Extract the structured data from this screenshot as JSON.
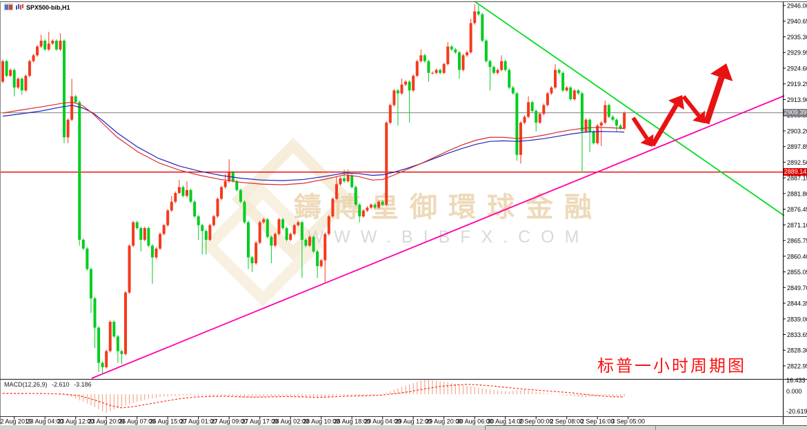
{
  "window": {
    "title": "SPX500-bib,H1"
  },
  "title_icons": [
    "window-split-icon",
    "mini-candlestick-icon"
  ],
  "watermark": {
    "brand_cn": "鑄博皇御環球金融",
    "brand_url": "WWW.BIBFX.COM"
  },
  "annotation": {
    "text": "标普一小时周期图",
    "color": "#fb1111"
  },
  "indicator": {
    "name": "MACD(12,26,9)",
    "value_macd": "-2.610",
    "value_signal": "-3.186"
  },
  "price_axis": {
    "current_price": "2909.39",
    "hline_price": "2889.14",
    "ticks": [
      "2946.00",
      "2940.65",
      "2935.30",
      "2929.95",
      "2924.60",
      "2919.25",
      "2913.90",
      "2908.55",
      "2903.20",
      "2897.85",
      "2892.50",
      "2887.15",
      "2881.80",
      "2876.45",
      "2871.10",
      "2865.75",
      "2860.40",
      "2855.05",
      "2849.70",
      "2844.35",
      "2839.00",
      "2833.65",
      "2828.30",
      "2822.95"
    ]
  },
  "macd_axis": {
    "max": "16.433",
    "zero": "0.000",
    "min": "-20.619"
  },
  "time_axis": {
    "labels": [
      "22 Aug 2019",
      "23 Aug 04:00",
      "23 Aug 12:00",
      "23 Aug 20:00",
      "26 Aug 07:00",
      "26 Aug 15:00",
      "27 Aug 01:00",
      "27 Aug 09:00",
      "27 Aug 17:00",
      "28 Aug 02:00",
      "28 Aug 10:00",
      "28 Aug 18:00",
      "29 Aug 04:00",
      "29 Aug 12:00",
      "29 Aug 20:00",
      "30 Aug 06:00",
      "30 Aug 14:00",
      "2 Sep 00:00",
      "2 Sep 08:00",
      "2 Sep 16:00",
      "3 Sep 05:00"
    ]
  },
  "colors": {
    "bull_body": "#f5391c",
    "bear_body": "#00cd1f",
    "ma_fast": "#d92b2b",
    "ma_slow": "#2424bb",
    "trend_green": "#00dd22",
    "trend_magenta": "#ff00aa",
    "hline_red": "#e00000",
    "cur_price_line": "#808080",
    "macd_hist": "#f2a184",
    "macd_signal": "#ff2d16",
    "arrow_red": "#e81212"
  },
  "chart_data": {
    "type": "candlestick",
    "symbol": "SPX500-bib",
    "timeframe": "H1",
    "title": "SPX500-bib,H1",
    "ylim": [
      2817.5,
      2948.0
    ],
    "tick_step": 5.35,
    "bars_per_time_label": 8,
    "first_open": 2920,
    "closes": [
      2927,
      2922,
      2924,
      2918,
      2921,
      2917,
      2922,
      2927,
      2929,
      2932,
      2934,
      2931,
      2933,
      2934,
      2931,
      2934,
      2901,
      2907,
      2915,
      2913,
      2866,
      2863,
      2856,
      2846,
      2836,
      2824,
      2822.5,
      2828,
      2838,
      2833,
      2828,
      2827,
      2848,
      2864,
      2872,
      2870,
      2866,
      2870,
      2864,
      2860,
      2863,
      2868,
      2871,
      2876,
      2879,
      2882,
      2884,
      2881,
      2883,
      2879,
      2874,
      2871,
      2869,
      2866,
      2871,
      2874,
      2880,
      2884,
      2886,
      2889,
      2886,
      2883,
      2879,
      2872,
      2860,
      2858,
      2865,
      2872,
      2873,
      2867,
      2864,
      2868,
      2873,
      2870,
      2866,
      2868,
      2871,
      2872,
      2866,
      2864,
      2867,
      2862,
      2857,
      2859,
      2868,
      2874,
      2880,
      2885,
      2887,
      2886,
      2888,
      2884,
      2878,
      2874,
      2876,
      2877,
      2878,
      2877,
      2879,
      2878,
      2906,
      2912,
      2917,
      2916,
      2919,
      2920,
      2917,
      2922,
      2927,
      2929,
      2927,
      2923,
      2923,
      2924,
      2923,
      2926,
      2932,
      2931,
      2930,
      2924,
      2929,
      2930,
      2940,
      2944,
      2943,
      2934,
      2927,
      2925,
      2923,
      2924,
      2927,
      2924,
      2918,
      2916,
      2895,
      2906,
      2908,
      2913,
      2910,
      2906,
      2909,
      2912,
      2916,
      2918,
      2924,
      2923,
      2917,
      2918,
      2914,
      2917,
      2916,
      2903,
      2907,
      2903,
      2899,
      2905,
      2906,
      2912,
      2908,
      2907,
      2905,
      2904,
      2909.39
    ],
    "wick_high_overrides": {
      "10": 2936,
      "12": 2937,
      "15": 2936.5,
      "18": 2921,
      "44": 2881,
      "46": 2886.5,
      "48": 2886,
      "58": 2888.5,
      "59": 2893.5,
      "87": 2887.5,
      "89": 2890,
      "90": 2890,
      "104": 2921,
      "109": 2931,
      "116": 2933.5,
      "122": 2941.5,
      "123": 2946.5,
      "124": 2946,
      "130": 2929,
      "137": 2915,
      "144": 2926,
      "157": 2913.5
    },
    "wick_low_overrides": {
      "3": 2915,
      "5": 2915.5,
      "16": 2899,
      "17": 2899,
      "20": 2864,
      "23": 2841,
      "24": 2829,
      "25": 2820.8,
      "26": 2820,
      "30": 2824,
      "31": 2823.5,
      "36": 2862,
      "39": 2851,
      "51": 2866,
      "52": 2861,
      "53": 2861,
      "64": 2856,
      "65": 2855,
      "70": 2858,
      "78": 2853,
      "82": 2853,
      "84": 2851.5,
      "93": 2872,
      "103": 2905,
      "106": 2906,
      "111": 2920,
      "119": 2921,
      "127": 2917,
      "134": 2893,
      "135": 2892,
      "139": 2903,
      "151": 2889,
      "153": 2896,
      "156": 2898,
      "160": 2903
    },
    "ma_fast_path": [
      [
        4,
        2909.3
      ],
      [
        30,
        2910.3
      ],
      [
        60,
        2911.4
      ],
      [
        90,
        2912.6
      ],
      [
        105,
        2913
      ],
      [
        120,
        2911.8
      ],
      [
        135,
        2909
      ],
      [
        150,
        2905.5
      ],
      [
        170,
        2901
      ],
      [
        200,
        2896
      ],
      [
        230,
        2892.3
      ],
      [
        260,
        2889.8
      ],
      [
        290,
        2888
      ],
      [
        320,
        2886.6
      ],
      [
        350,
        2885.6
      ],
      [
        380,
        2885
      ],
      [
        410,
        2884.8
      ],
      [
        440,
        2885.3
      ],
      [
        470,
        2886.6
      ],
      [
        500,
        2888.2
      ],
      [
        520,
        2887.6
      ],
      [
        540,
        2886.4
      ],
      [
        555,
        2886.6
      ],
      [
        570,
        2888
      ],
      [
        590,
        2890
      ],
      [
        610,
        2892
      ],
      [
        630,
        2894.2
      ],
      [
        650,
        2896.4
      ],
      [
        670,
        2898.4
      ],
      [
        690,
        2900
      ],
      [
        710,
        2901
      ],
      [
        730,
        2901
      ],
      [
        750,
        2900.6
      ],
      [
        770,
        2901
      ],
      [
        790,
        2901.8
      ],
      [
        810,
        2902.8
      ],
      [
        830,
        2903.6
      ],
      [
        850,
        2904.2
      ],
      [
        870,
        2904.4
      ],
      [
        890,
        2904.2
      ],
      [
        905,
        2904
      ]
    ],
    "ma_slow_path": [
      [
        4,
        2908.2
      ],
      [
        30,
        2909
      ],
      [
        60,
        2910
      ],
      [
        90,
        2911.4
      ],
      [
        105,
        2911.9
      ],
      [
        120,
        2911
      ],
      [
        135,
        2909.3
      ],
      [
        150,
        2906.5
      ],
      [
        170,
        2902.5
      ],
      [
        200,
        2897.6
      ],
      [
        230,
        2893.8
      ],
      [
        260,
        2891.2
      ],
      [
        290,
        2889.4
      ],
      [
        320,
        2888
      ],
      [
        350,
        2887
      ],
      [
        380,
        2886.4
      ],
      [
        410,
        2886.2
      ],
      [
        440,
        2886.6
      ],
      [
        470,
        2887.6
      ],
      [
        500,
        2888.8
      ],
      [
        520,
        2888.6
      ],
      [
        540,
        2888
      ],
      [
        555,
        2888.2
      ],
      [
        570,
        2889
      ],
      [
        590,
        2890.4
      ],
      [
        610,
        2892
      ],
      [
        630,
        2893.8
      ],
      [
        650,
        2895.6
      ],
      [
        670,
        2897.2
      ],
      [
        690,
        2898.6
      ],
      [
        710,
        2899.6
      ],
      [
        730,
        2899.8
      ],
      [
        750,
        2899.6
      ],
      [
        770,
        2900
      ],
      [
        790,
        2900.6
      ],
      [
        810,
        2901.4
      ],
      [
        830,
        2902.2
      ],
      [
        850,
        2902.8
      ],
      [
        870,
        2903
      ],
      [
        890,
        2902.9
      ],
      [
        905,
        2902.8
      ]
    ],
    "hline_price": 2889.14,
    "current_price": 2909.39,
    "trendlines": [
      {
        "name": "descending-resistance",
        "color": "#00dd22",
        "from": [
          688,
          2
        ],
        "to": [
          1137,
          313
        ]
      },
      {
        "name": "ascending-support",
        "color": "#ff00aa",
        "from": [
          133,
          549
        ],
        "to": [
          1137,
          139
        ]
      }
    ],
    "arrows": [
      {
        "from": [
          918,
          171
        ],
        "to": [
          946,
          213
        ],
        "w": 6
      },
      {
        "from": [
          946,
          211
        ],
        "to": [
          989,
          138
        ],
        "w": 7
      },
      {
        "from": [
          991,
          140
        ],
        "to": [
          1022,
          179
        ],
        "w": 6
      },
      {
        "from": [
          1024,
          179
        ],
        "to": [
          1053,
          92
        ],
        "w": 9
      }
    ],
    "macd": {
      "values_label": [
        -2.61,
        -3.186
      ],
      "hist_waypoints": [
        [
          0,
          1.2
        ],
        [
          6,
          0.8
        ],
        [
          10,
          1.4
        ],
        [
          14,
          0.2
        ],
        [
          16,
          -1.5
        ],
        [
          18,
          -3
        ],
        [
          20,
          -7
        ],
        [
          22,
          -10.5
        ],
        [
          24,
          -14.5
        ],
        [
          26,
          -19
        ],
        [
          27,
          -20.6
        ],
        [
          29,
          -17
        ],
        [
          31,
          -14
        ],
        [
          33,
          -11
        ],
        [
          35,
          -8.5
        ],
        [
          38,
          -5.5
        ],
        [
          42,
          -3
        ],
        [
          46,
          -1.8
        ],
        [
          50,
          -1.2
        ],
        [
          54,
          -2.2
        ],
        [
          58,
          -1.6
        ],
        [
          61,
          -3
        ],
        [
          63,
          -4.2
        ],
        [
          66,
          -3.6
        ],
        [
          70,
          -2.8
        ],
        [
          74,
          -2.2
        ],
        [
          78,
          -3.2
        ],
        [
          82,
          -4.4
        ],
        [
          85,
          -3.2
        ],
        [
          88,
          -1.2
        ],
        [
          92,
          -2.4
        ],
        [
          96,
          -1.6
        ],
        [
          99,
          -0.5
        ],
        [
          100,
          1.8
        ],
        [
          102,
          5
        ],
        [
          104,
          8
        ],
        [
          106,
          11
        ],
        [
          108,
          14
        ],
        [
          110,
          16.4
        ],
        [
          112,
          15.5
        ],
        [
          114,
          14.2
        ],
        [
          116,
          13.2
        ],
        [
          118,
          11.6
        ],
        [
          120,
          10.2
        ],
        [
          122,
          8.8
        ],
        [
          124,
          7.2
        ],
        [
          126,
          5.6
        ],
        [
          128,
          4.6
        ],
        [
          130,
          3.6
        ],
        [
          132,
          3
        ],
        [
          134,
          4.2
        ],
        [
          136,
          4.6
        ],
        [
          138,
          3.2
        ],
        [
          140,
          2.2
        ],
        [
          142,
          1.2
        ],
        [
          144,
          0.2
        ],
        [
          146,
          -1
        ],
        [
          148,
          -2
        ],
        [
          150,
          -3
        ],
        [
          152,
          -3.6
        ],
        [
          154,
          -2.6
        ],
        [
          156,
          -1.6
        ],
        [
          158,
          -2
        ],
        [
          160,
          -2.8
        ],
        [
          162,
          -2.61
        ]
      ],
      "signal_waypoints": [
        [
          0,
          0.9
        ],
        [
          10,
          0.8
        ],
        [
          16,
          0.1
        ],
        [
          20,
          -1.8
        ],
        [
          24,
          -6.5
        ],
        [
          28,
          -12.5
        ],
        [
          31,
          -15.3
        ],
        [
          34,
          -14
        ],
        [
          38,
          -11
        ],
        [
          42,
          -8
        ],
        [
          46,
          -5.2
        ],
        [
          50,
          -3.2
        ],
        [
          54,
          -2.6
        ],
        [
          58,
          -2.3
        ],
        [
          62,
          -3
        ],
        [
          66,
          -3.4
        ],
        [
          70,
          -3
        ],
        [
          74,
          -2.6
        ],
        [
          78,
          -3
        ],
        [
          82,
          -3.7
        ],
        [
          86,
          -3
        ],
        [
          90,
          -2.1
        ],
        [
          94,
          -1.8
        ],
        [
          98,
          -1.3
        ],
        [
          102,
          0.4
        ],
        [
          106,
          2.8
        ],
        [
          110,
          6
        ],
        [
          114,
          8.6
        ],
        [
          118,
          10.2
        ],
        [
          121,
          11
        ],
        [
          124,
          10.4
        ],
        [
          128,
          9
        ],
        [
          132,
          7.2
        ],
        [
          136,
          5.6
        ],
        [
          140,
          4.2
        ],
        [
          144,
          3
        ],
        [
          148,
          1.6
        ],
        [
          152,
          -0.4
        ],
        [
          156,
          -2
        ],
        [
          159,
          -2.9
        ],
        [
          162,
          -3.19
        ]
      ]
    }
  }
}
